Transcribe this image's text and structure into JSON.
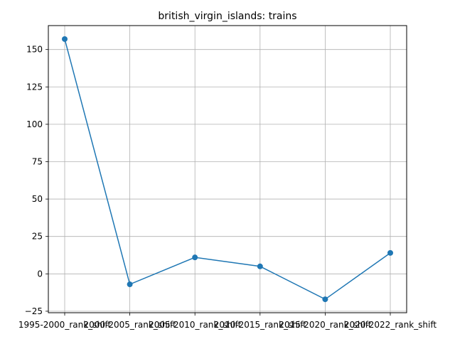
{
  "chart_data": {
    "type": "line",
    "title": "british_virgin_islands: trains",
    "xlabel": "",
    "ylabel": "",
    "categories": [
      "1995-2000_rank_shift",
      "2000-2005_rank_shift",
      "2005-2010_rank_shift",
      "2010-2015_rank_shift",
      "2015-2020_rank_shift",
      "2020-2022_rank_shift"
    ],
    "series": [
      {
        "values": [
          157,
          -7,
          11,
          5,
          -17,
          14
        ]
      }
    ],
    "ylim": [
      -26,
      166
    ],
    "yticks": [
      -25,
      0,
      25,
      50,
      75,
      100,
      125,
      150
    ],
    "grid": true,
    "colors": {
      "line": "#1f77b4",
      "grid": "#b0b0b0",
      "axes": "#000000"
    }
  }
}
